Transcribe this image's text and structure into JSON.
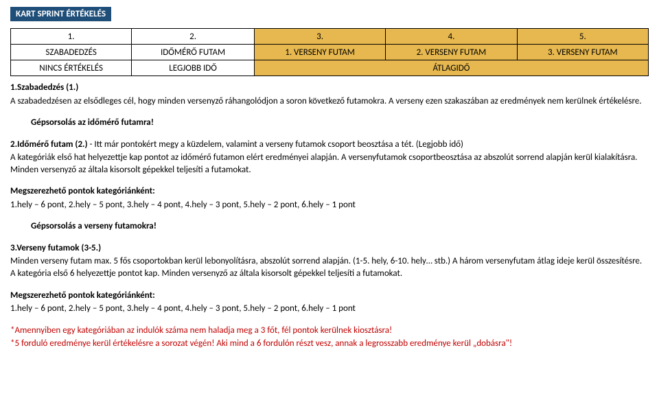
{
  "title": "KART SPRINT ÉRTÉKELÉS",
  "table": {
    "r1": [
      "1.",
      "2.",
      "3.",
      "4.",
      "5."
    ],
    "r2": [
      "SZABADEDZÉS",
      "IDŐMÉRŐ FUTAM",
      "1. VERSENY FUTAM",
      "2. VERSENY FUTAM",
      "3. VERSENY FUTAM"
    ],
    "r3": [
      "NINCS ÉRTÉKELÉS",
      "LEGJOBB IDŐ",
      "",
      "ÁTLAGIDŐ",
      ""
    ]
  },
  "s1": {
    "heading": "1.Szabadedzés (1.)",
    "p1": "A szabadedzésen az elsődleges cél, hogy minden versenyző ráhangolódjon a soron következő futamokra. A verseny ezen szakaszában az eredmények nem kerülnek értékelésre.",
    "p2": "Gépsorsolás az időmérő futamra!"
  },
  "s2": {
    "heading": "2.Időmérő futam (2.)",
    "p1a": " - Itt már pontokért megy a küzdelem, valamint a verseny futamok csoport beosztása a tét. (Legjobb idő)",
    "p1b": "A kategóriák első hat helyezettje kap pontot az időmérő futamon elért eredményei alapján. A versenyfutamok csoportbeosztása az abszolút sorrend alapján kerül kialakításra. Minden versenyző az általa kisorsolt gépekkel teljesíti a futamokat.",
    "pointsHead": "Megszerezhető pontok kategóriánként:",
    "points": "1.hely – 6 pont, 2.hely – 5 pont, 3.hely – 4 pont, 4.hely – 3 pont, 5.hely – 2 pont, 6.hely – 1 pont",
    "p2": "Gépsorsolás a verseny futamokra!"
  },
  "s3": {
    "heading": "3.Verseny futamok (3-5.)",
    "p1": "Minden verseny futam max. 5 fős csoportokban kerül lebonyolításra, abszolút sorrend alapján. (1-5. hely, 6-10. hely… stb.) A három versenyfutam átlag ideje kerül összesítésre. A kategória első 6 helyezettje pontot kap. Minden versenyző az általa kisorsolt gépekkel teljesíti a futamokat.",
    "pointsHead": "Megszerezhető pontok kategóriánként:",
    "points": "1.hely – 6 pont, 2.hely – 5 pont, 3.hely – 4 pont, 4.hely – 3 pont, 5.hely – 2 pont, 6.hely – 1 pont"
  },
  "notes": {
    "n1": "*Amennyiben egy kategóriában az indulók száma nem haladja meg a 3 főt, fél pontok kerülnek kiosztásra!",
    "n2": "*5 forduló eredménye kerül értékelésre a sorozat végén! Aki mind a 6 fordulón részt vesz, annak a legrosszabb eredménye kerül „dobásra\"!"
  }
}
